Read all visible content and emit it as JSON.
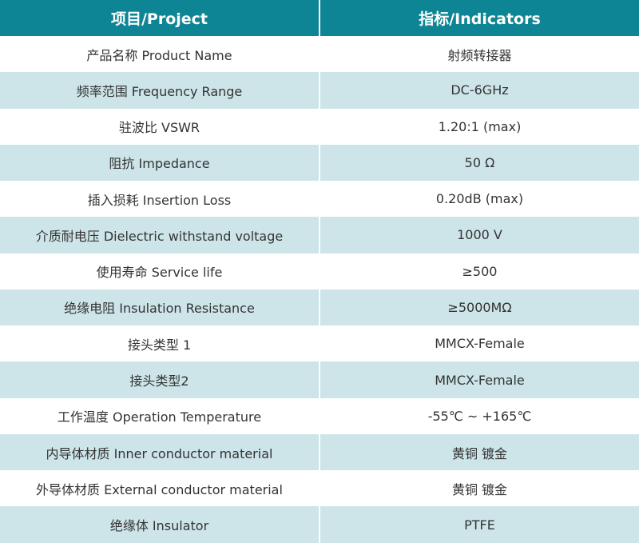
{
  "header": {
    "project": "项目/Project",
    "indicators": "指标/Indicators"
  },
  "rows": [
    {
      "project": "产品名称 Product Name",
      "value": "射频转接器"
    },
    {
      "project": "频率范围 Frequency Range",
      "value": "DC-6GHz"
    },
    {
      "project": "驻波比 VSWR",
      "value": "1.20:1 (max)"
    },
    {
      "project": "阻抗 Impedance",
      "value": "50 Ω"
    },
    {
      "project": "插入损耗 Insertion Loss",
      "value": "0.20dB (max)"
    },
    {
      "project": "介质耐电压 Dielectric withstand voltage",
      "value": "1000 V"
    },
    {
      "project": "使用寿命 Service life",
      "value": "≥500"
    },
    {
      "project": "绝缘电阻 Insulation Resistance",
      "value": "≥5000MΩ"
    },
    {
      "project": "接头类型 1",
      "value": "MMCX-Female"
    },
    {
      "project": "接头类型2",
      "value": "MMCX-Female"
    },
    {
      "project": "工作温度 Operation Temperature",
      "value": "-55℃ ~ +165℃"
    },
    {
      "project": "内导体材质 Inner conductor material",
      "value": "黄铜 镀金"
    },
    {
      "project": "外导体材质 External conductor material",
      "value": "黄铜 镀金"
    },
    {
      "project": "绝缘体 Insulator",
      "value": "PTFE"
    }
  ],
  "colors": {
    "header": "#0e8595",
    "alt_row": "#cde5e9"
  }
}
